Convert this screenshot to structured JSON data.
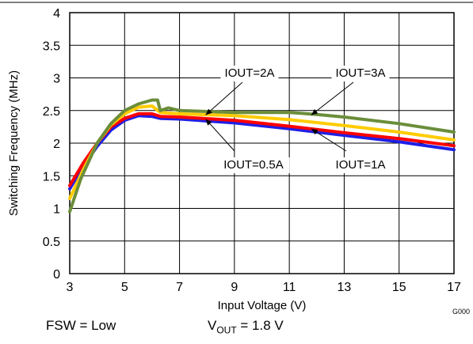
{
  "chart_data": {
    "type": "line",
    "xlabel": "Input Voltage (V)",
    "ylabel": "Switching Frequency (MHz)",
    "xlim": [
      3,
      17
    ],
    "ylim": [
      0,
      4
    ],
    "xticks": [
      3,
      5,
      7,
      9,
      11,
      13,
      15,
      17
    ],
    "yticks": [
      0,
      0.5,
      1,
      1.5,
      2,
      2.5,
      3,
      3.5,
      4
    ],
    "ytick_labels": [
      "0",
      "0.5",
      "1",
      "1.5",
      "2",
      "2.5",
      "3",
      "3.5",
      "4"
    ],
    "grid": true,
    "series": [
      {
        "name": "IOUT=0.5A",
        "color": "#1f1fe6",
        "x": [
          3,
          3.5,
          4,
          4.5,
          5,
          5.5,
          6,
          6.3,
          7,
          9,
          11,
          13,
          15,
          17
        ],
        "y": [
          1.3,
          1.65,
          1.95,
          2.2,
          2.35,
          2.42,
          2.41,
          2.38,
          2.37,
          2.31,
          2.22,
          2.12,
          2.02,
          1.9
        ]
      },
      {
        "name": "IOUT=1A",
        "color": "#ff0000",
        "x": [
          3,
          3.5,
          4,
          4.5,
          5,
          5.5,
          6,
          6.3,
          7,
          9,
          11,
          13,
          15,
          17
        ],
        "y": [
          1.35,
          1.7,
          2.0,
          2.25,
          2.38,
          2.45,
          2.45,
          2.41,
          2.4,
          2.35,
          2.26,
          2.16,
          2.07,
          1.96
        ]
      },
      {
        "name": "IOUT=2A",
        "color": "#ffcc00",
        "x": [
          3,
          3.5,
          4,
          4.5,
          5,
          5.5,
          6,
          6.3,
          7,
          9,
          11,
          13,
          15,
          17
        ],
        "y": [
          1.15,
          1.6,
          2.0,
          2.28,
          2.45,
          2.55,
          2.57,
          2.47,
          2.45,
          2.42,
          2.36,
          2.27,
          2.17,
          2.05
        ]
      },
      {
        "name": "IOUT=3A",
        "color": "#6b8e3a",
        "x": [
          3,
          3.4,
          4,
          4.5,
          5,
          5.5,
          6,
          6.2,
          6.3,
          6.6,
          7,
          9,
          11,
          12,
          13,
          15,
          17
        ],
        "y": [
          0.95,
          1.45,
          2.0,
          2.3,
          2.5,
          2.6,
          2.66,
          2.66,
          2.5,
          2.54,
          2.5,
          2.47,
          2.47,
          2.44,
          2.4,
          2.3,
          2.17
        ]
      }
    ],
    "annotations": [
      {
        "text": "IOUT=2A",
        "point": [
          7.95,
          2.43
        ]
      },
      {
        "text": "IOUT=3A",
        "point": [
          11.8,
          2.43
        ]
      },
      {
        "text": "IOUT=0.5A",
        "point": [
          7.95,
          2.37
        ]
      },
      {
        "text": "IOUT=1A",
        "point": [
          11.8,
          2.22
        ]
      }
    ]
  },
  "figure_id": "G000",
  "footer": {
    "fsw": "FSW = Low",
    "vout_main": "V",
    "vout_sub": "OUT",
    "vout_value": " = 1.8 V"
  }
}
